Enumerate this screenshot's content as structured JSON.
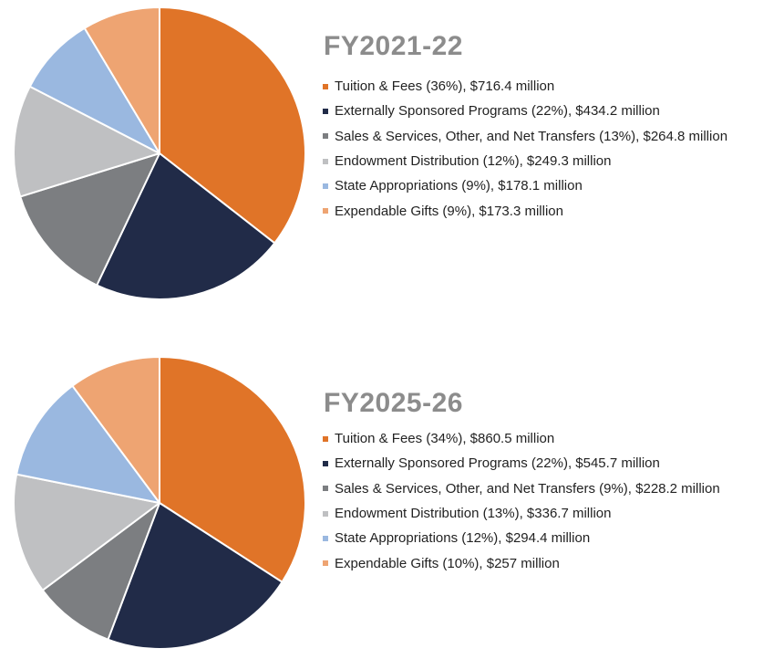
{
  "chart_data": [
    {
      "type": "pie",
      "title": "FY2021-22",
      "start_angle_deg": 0,
      "direction": "clockwise",
      "slices": [
        {
          "label": "Tuition & Fees (36%), $716.4 million",
          "value": 716.4,
          "percent": 36,
          "color": "#e07428"
        },
        {
          "label": "Externally Sponsored Programs (22%), $434.2 million",
          "value": 434.2,
          "percent": 22,
          "color": "#212b48"
        },
        {
          "label": "Sales & Services, Other, and Net Transfers (13%), $264.8 million",
          "value": 264.8,
          "percent": 13,
          "color": "#7c7e81"
        },
        {
          "label": "Endowment Distribution (12%), $249.3 million",
          "value": 249.3,
          "percent": 12,
          "color": "#bfc0c2"
        },
        {
          "label": "State Appropriations (9%), $178.1 million",
          "value": 178.1,
          "percent": 9,
          "color": "#9ab8e0"
        },
        {
          "label": "Expendable Gifts (9%), $173.3 million",
          "value": 173.3,
          "percent": 9,
          "color": "#eea472"
        }
      ]
    },
    {
      "type": "pie",
      "title": "FY2025-26",
      "start_angle_deg": 0,
      "direction": "clockwise",
      "slices": [
        {
          "label": "Tuition & Fees (34%), $860.5 million",
          "value": 860.5,
          "percent": 34,
          "color": "#e07428"
        },
        {
          "label": "Externally Sponsored Programs (22%), $545.7 million",
          "value": 545.7,
          "percent": 22,
          "color": "#212b48"
        },
        {
          "label": "Sales & Services, Other, and Net Transfers (9%), $228.2 million",
          "value": 228.2,
          "percent": 9,
          "color": "#7c7e81"
        },
        {
          "label": "Endowment Distribution (13%), $336.7 million",
          "value": 336.7,
          "percent": 13,
          "color": "#bfc0c2"
        },
        {
          "label": "State Appropriations (12%), $294.4 million",
          "value": 294.4,
          "percent": 12,
          "color": "#9ab8e0"
        },
        {
          "label": "Expendable Gifts (10%), $257 million",
          "value": 257,
          "percent": 10,
          "color": "#eea472"
        }
      ]
    }
  ]
}
